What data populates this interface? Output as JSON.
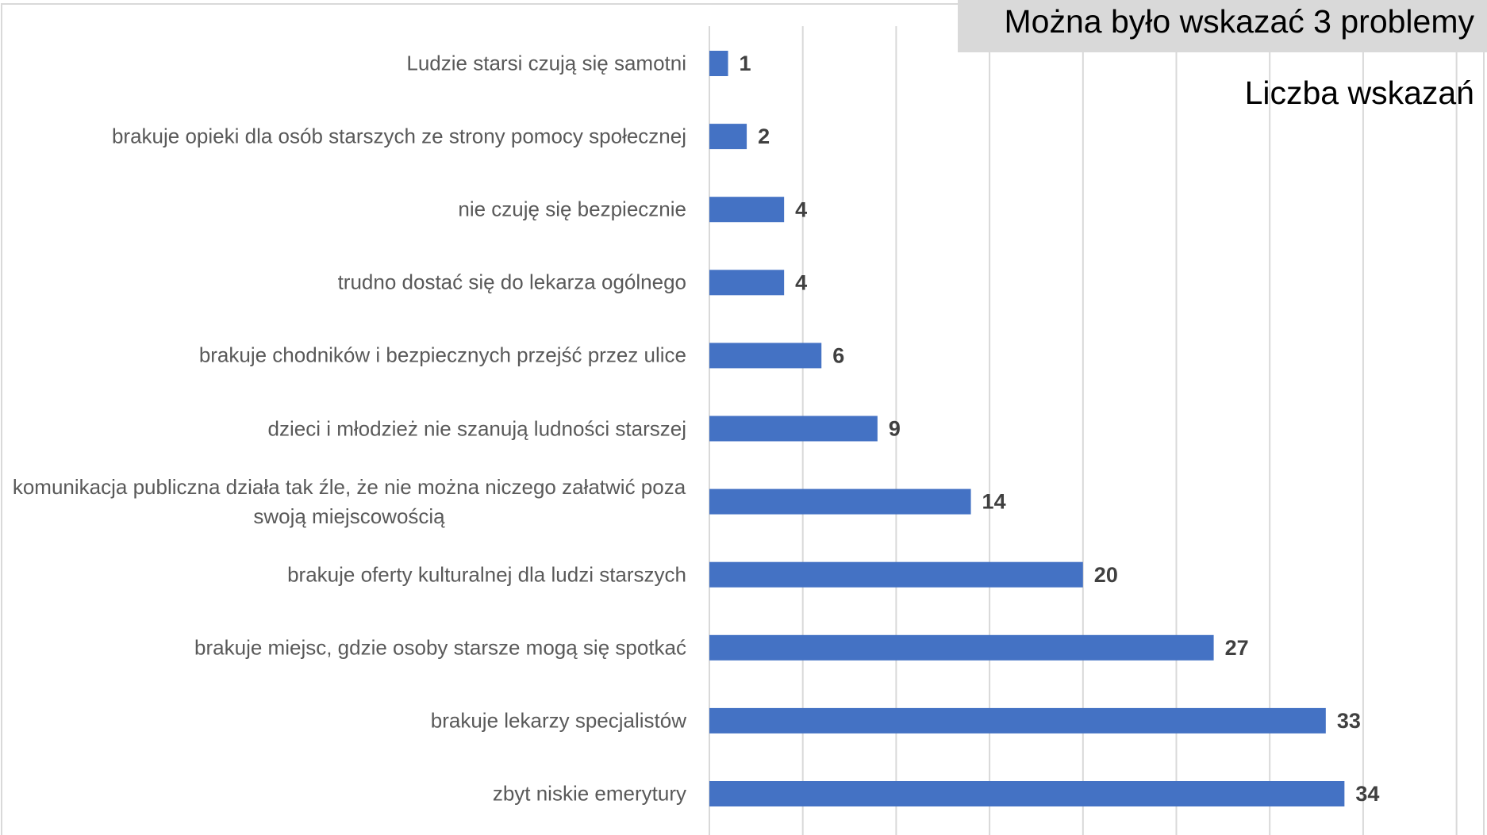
{
  "chart_data": {
    "type": "bar",
    "orientation": "horizontal",
    "title": "Można było wskazać 3 problemy",
    "subtitle": "Liczba wskazań",
    "categories": [
      "Ludzie starsi czują się samotni",
      "brakuje opieki dla osób starszych ze strony pomocy społecznej",
      "nie czuję się bezpiecznie",
      "trudno dostać się do lekarza ogólnego",
      "brakuje chodników i bezpiecznych przejść przez ulice",
      "dzieci i młodzież nie szanują ludności starszej",
      "komunikacja publiczna działa tak źle, że nie można niczego załatwić poza swoją miejscowością",
      "brakuje oferty kulturalnej dla ludzi starszych",
      "brakuje miejsc, gdzie osoby starsze mogą się spotkać",
      "brakuje lekarzy specjalistów",
      "zbyt niskie emerytury"
    ],
    "values": [
      1,
      2,
      4,
      4,
      6,
      9,
      14,
      20,
      27,
      33,
      34
    ],
    "color": "#4472c4",
    "xlim": [
      0,
      40
    ],
    "xticks": [
      0,
      5,
      10,
      15,
      20,
      25,
      30,
      35,
      40
    ],
    "grid": true
  }
}
